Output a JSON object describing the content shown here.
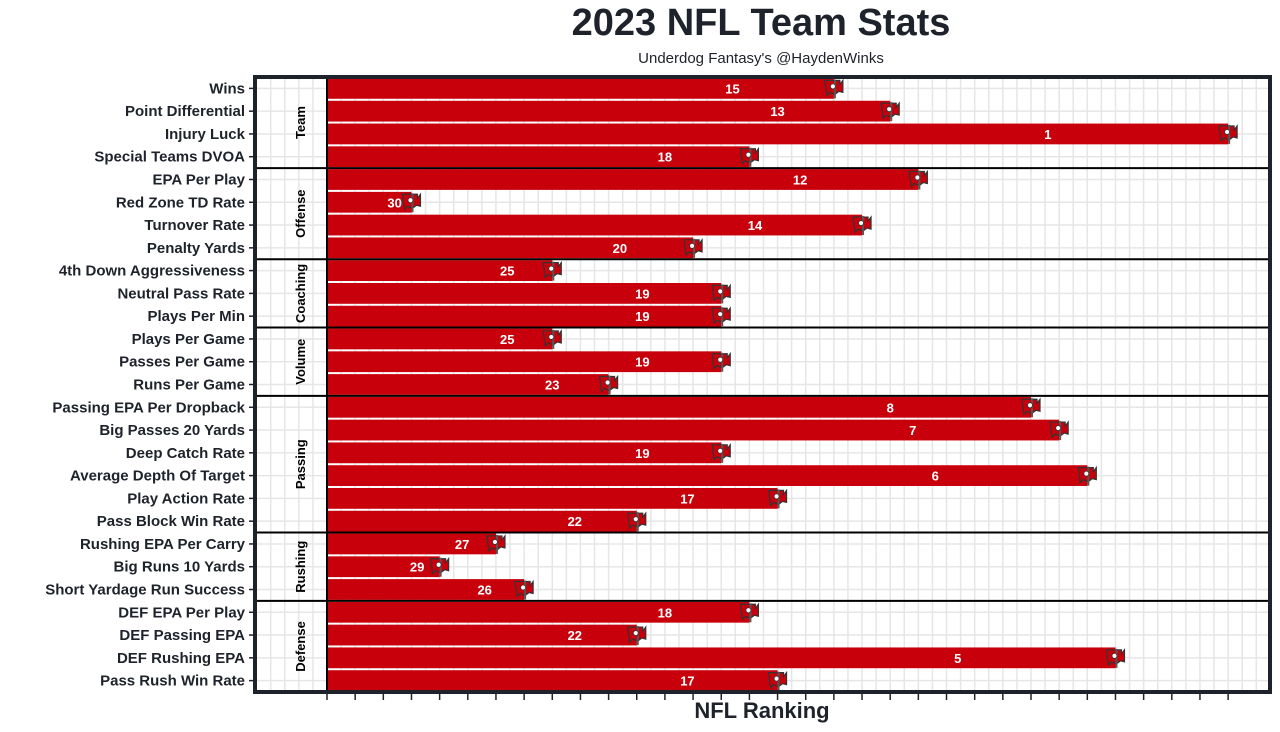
{
  "chart_data": {
    "type": "bar",
    "orientation": "horizontal",
    "title": "2023 NFL Team Stats",
    "subtitle": "Underdog Fantasy's @HaydenWinks",
    "xlabel": "NFL Ranking",
    "ylabel": "",
    "note": "Bar length = 33 - ranking (rank 1 longest); bar labels show ranking",
    "colors": {
      "bar": "#c8000c",
      "border": "#1e222b",
      "grid": "#e6e6e6"
    },
    "groups": [
      {
        "name": "Team",
        "rows": [
          {
            "label": "Wins",
            "rank": 15
          },
          {
            "label": "Point Differential",
            "rank": 13
          },
          {
            "label": "Injury Luck",
            "rank": 1
          },
          {
            "label": "Special Teams DVOA",
            "rank": 18
          }
        ]
      },
      {
        "name": "Offense",
        "rows": [
          {
            "label": "EPA Per Play",
            "rank": 12
          },
          {
            "label": "Red Zone TD Rate",
            "rank": 30
          },
          {
            "label": "Turnover Rate",
            "rank": 14
          },
          {
            "label": "Penalty Yards",
            "rank": 20
          }
        ]
      },
      {
        "name": "Coaching",
        "rows": [
          {
            "label": "4th Down Aggressiveness",
            "rank": 25
          },
          {
            "label": "Neutral Pass Rate",
            "rank": 19
          },
          {
            "label": "Plays Per Min",
            "rank": 19
          }
        ]
      },
      {
        "name": "Volume",
        "rows": [
          {
            "label": "Plays Per Game",
            "rank": 25
          },
          {
            "label": "Passes Per Game",
            "rank": 19
          },
          {
            "label": "Runs Per Game",
            "rank": 23
          }
        ]
      },
      {
        "name": "Passing",
        "rows": [
          {
            "label": "Passing EPA Per Dropback",
            "rank": 8
          },
          {
            "label": "Big Passes 20 Yards",
            "rank": 7
          },
          {
            "label": "Deep Catch Rate",
            "rank": 19
          },
          {
            "label": "Average Depth Of Target",
            "rank": 6
          },
          {
            "label": "Play Action Rate",
            "rank": 17
          },
          {
            "label": "Pass Block Win Rate",
            "rank": 22
          }
        ]
      },
      {
        "name": "Rushing",
        "rows": [
          {
            "label": "Rushing EPA Per Carry",
            "rank": 27
          },
          {
            "label": "Big Runs 10 Yards",
            "rank": 29
          },
          {
            "label": "Short Yardage Run Success",
            "rank": 26
          }
        ]
      },
      {
        "name": "Defense",
        "rows": [
          {
            "label": "DEF EPA Per Play",
            "rank": 18
          },
          {
            "label": "DEF Passing EPA",
            "rank": 22
          },
          {
            "label": "DEF Rushing EPA",
            "rank": 5
          },
          {
            "label": "Pass Rush Win Rate",
            "rank": 17
          }
        ]
      }
    ]
  }
}
